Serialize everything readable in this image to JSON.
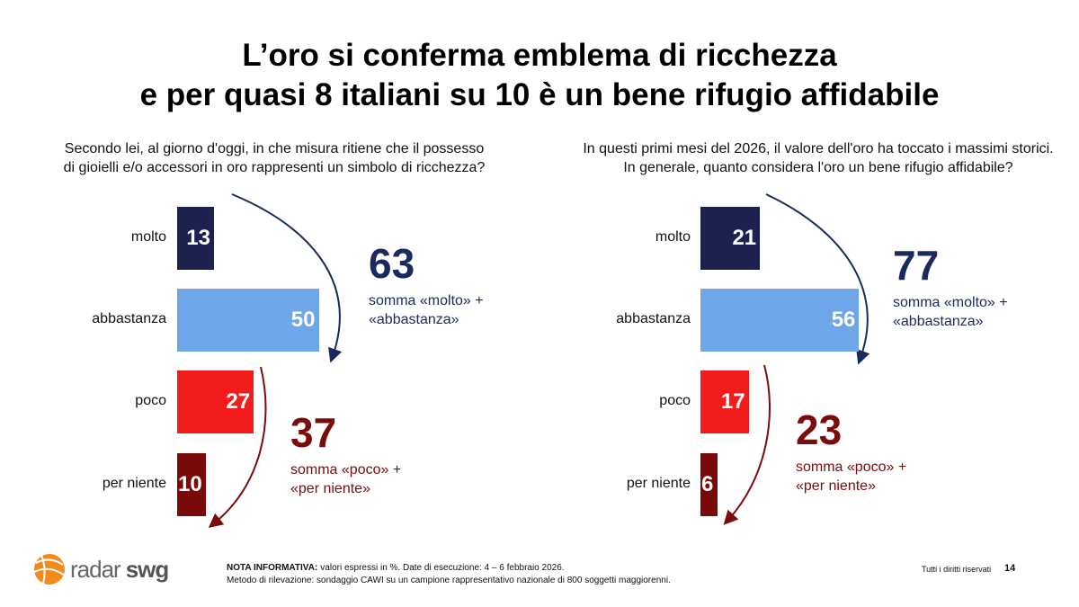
{
  "title": [
    "L’oro si conferma emblema di ricchezza",
    "e per quasi 8 italiani su 10 è un bene rifugio affidabile"
  ],
  "chart_data": [
    {
      "type": "bar",
      "orientation": "horizontal",
      "question": [
        "Secondo lei, al giorno d'oggi, in che misura ritiene che il possesso",
        "di gioielli e/o accessori in oro rappresenti un simbolo di ricchezza?"
      ],
      "categories": [
        "molto",
        "abbastanza",
        "poco",
        "per niente"
      ],
      "values": [
        13,
        50,
        27,
        10
      ],
      "colors": [
        "#1c2150",
        "#6fa6ea",
        "#f21c1c",
        "#7a0a0a"
      ],
      "annotations": [
        {
          "value": 63,
          "text": [
            "somma «molto» +",
            "«abbastanza»"
          ],
          "color": "#1a2a5e"
        },
        {
          "value": 37,
          "text": [
            "somma «poco» +",
            "«per niente»"
          ],
          "color": "#7b0c0c"
        }
      ]
    },
    {
      "type": "bar",
      "orientation": "horizontal",
      "question": [
        "In questi primi mesi del 2026, il valore dell'oro ha toccato i massimi storici.",
        "In generale, quanto considera l'oro un bene rifugio affidabile?"
      ],
      "categories": [
        "molto",
        "abbastanza",
        "poco",
        "per niente"
      ],
      "values": [
        21,
        56,
        17,
        6
      ],
      "colors": [
        "#1c2150",
        "#6fa6ea",
        "#f21c1c",
        "#7a0a0a"
      ],
      "annotations": [
        {
          "value": 77,
          "text": [
            "somma «molto» +",
            "«abbastanza»"
          ],
          "color": "#1a2a5e"
        },
        {
          "value": 23,
          "text": [
            "somma «poco» +",
            "«per niente»"
          ],
          "color": "#7b0c0c"
        }
      ]
    }
  ],
  "footer": {
    "logo": [
      "radar",
      "swg"
    ],
    "note_label": "NOTA INFORMATIVA:",
    "note": "valori espressi in %. Date di esecuzione: 4 – 6 febbraio 2026.",
    "method": "Metodo di rilevazione: sondaggio CAWI su un campione rappresentativo nazionale di 800 soggetti maggiorenni.",
    "rights": "Tutti i diritti riservati",
    "page": "14"
  }
}
